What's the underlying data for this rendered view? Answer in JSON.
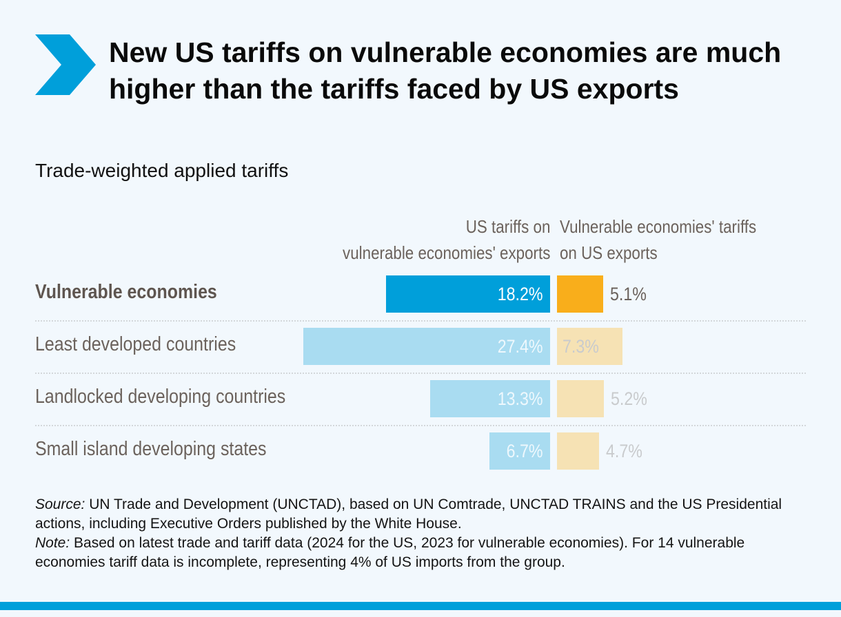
{
  "header": {
    "icon": "chevron-right-icon",
    "title": "New US tariffs on vulnerable economies are much higher than the tariffs faced by US exports",
    "subtitle": "Trade-weighted applied tariffs"
  },
  "colors": {
    "accent": "#009fda",
    "us_highlight": "#009fda",
    "us_muted": "#a9dcf1",
    "vuln_highlight": "#f9ae1b",
    "vuln_muted": "#f6e2b4",
    "label_text": "#6b625c",
    "background": "#f2f8fd"
  },
  "chart_data": {
    "type": "bar",
    "orientation": "horizontal",
    "title": "Trade-weighted applied tariffs",
    "unit": "%",
    "categories": [
      "Vulnerable economies",
      "Least developed countries",
      "Landlocked developing countries",
      "Small island developing states"
    ],
    "highlighted_category": "Vulnerable economies",
    "series": [
      {
        "name": "US tariffs on vulnerable economies' exports",
        "values": [
          18.2,
          27.4,
          13.3,
          6.7
        ],
        "labels": [
          "18.2%",
          "27.4%",
          "13.3%",
          "6.7%"
        ],
        "direction": "left"
      },
      {
        "name": "Vulnerable economies' tariffs on US exports",
        "values": [
          5.1,
          7.3,
          5.2,
          4.7
        ],
        "labels": [
          "5.1%",
          "7.3%",
          "5.2%",
          "4.7%"
        ],
        "direction": "right"
      }
    ],
    "column_headers": {
      "left_line1": "US tariffs on",
      "left_line2": "vulnerable economies' exports",
      "right_line1": "Vulnerable economies' tariffs",
      "right_line2": "on US exports"
    },
    "grid": false,
    "xlabel": "",
    "ylabel": ""
  },
  "footnote": {
    "source_label": "Source:",
    "source_text": " UN Trade and Development (UNCTAD), based on UN Comtrade, UNCTAD TRAINS and the US Presidential actions, including Executive Orders published by the White House.",
    "note_label": "Note:",
    "note_text": " Based on latest trade and tariff data (2024 for the US, 2023 for vulnerable economies). For 14 vulnerable economies tariff data is incomplete, representing 4% of US imports from the group."
  }
}
